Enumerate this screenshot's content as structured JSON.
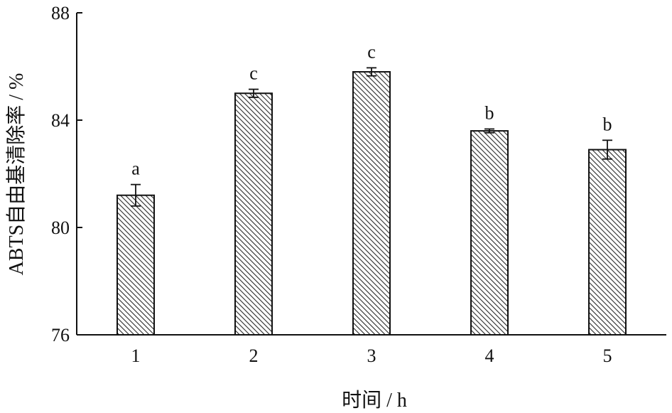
{
  "chart_data": {
    "type": "bar",
    "xlabel": "时间 / h",
    "ylabel": "ABTS自由基清除率 / %",
    "categories": [
      "1",
      "2",
      "3",
      "4",
      "5"
    ],
    "values": [
      81.2,
      85.0,
      85.8,
      83.6,
      82.9
    ],
    "errors": [
      0.4,
      0.15,
      0.15,
      0.07,
      0.35
    ],
    "significance": [
      "a",
      "c",
      "c",
      "b",
      "b"
    ],
    "ylim": [
      76,
      88
    ],
    "yticks": [
      "76",
      "80",
      "84",
      "88"
    ],
    "bar_pattern": "diagonal-hatch",
    "grid": false
  }
}
